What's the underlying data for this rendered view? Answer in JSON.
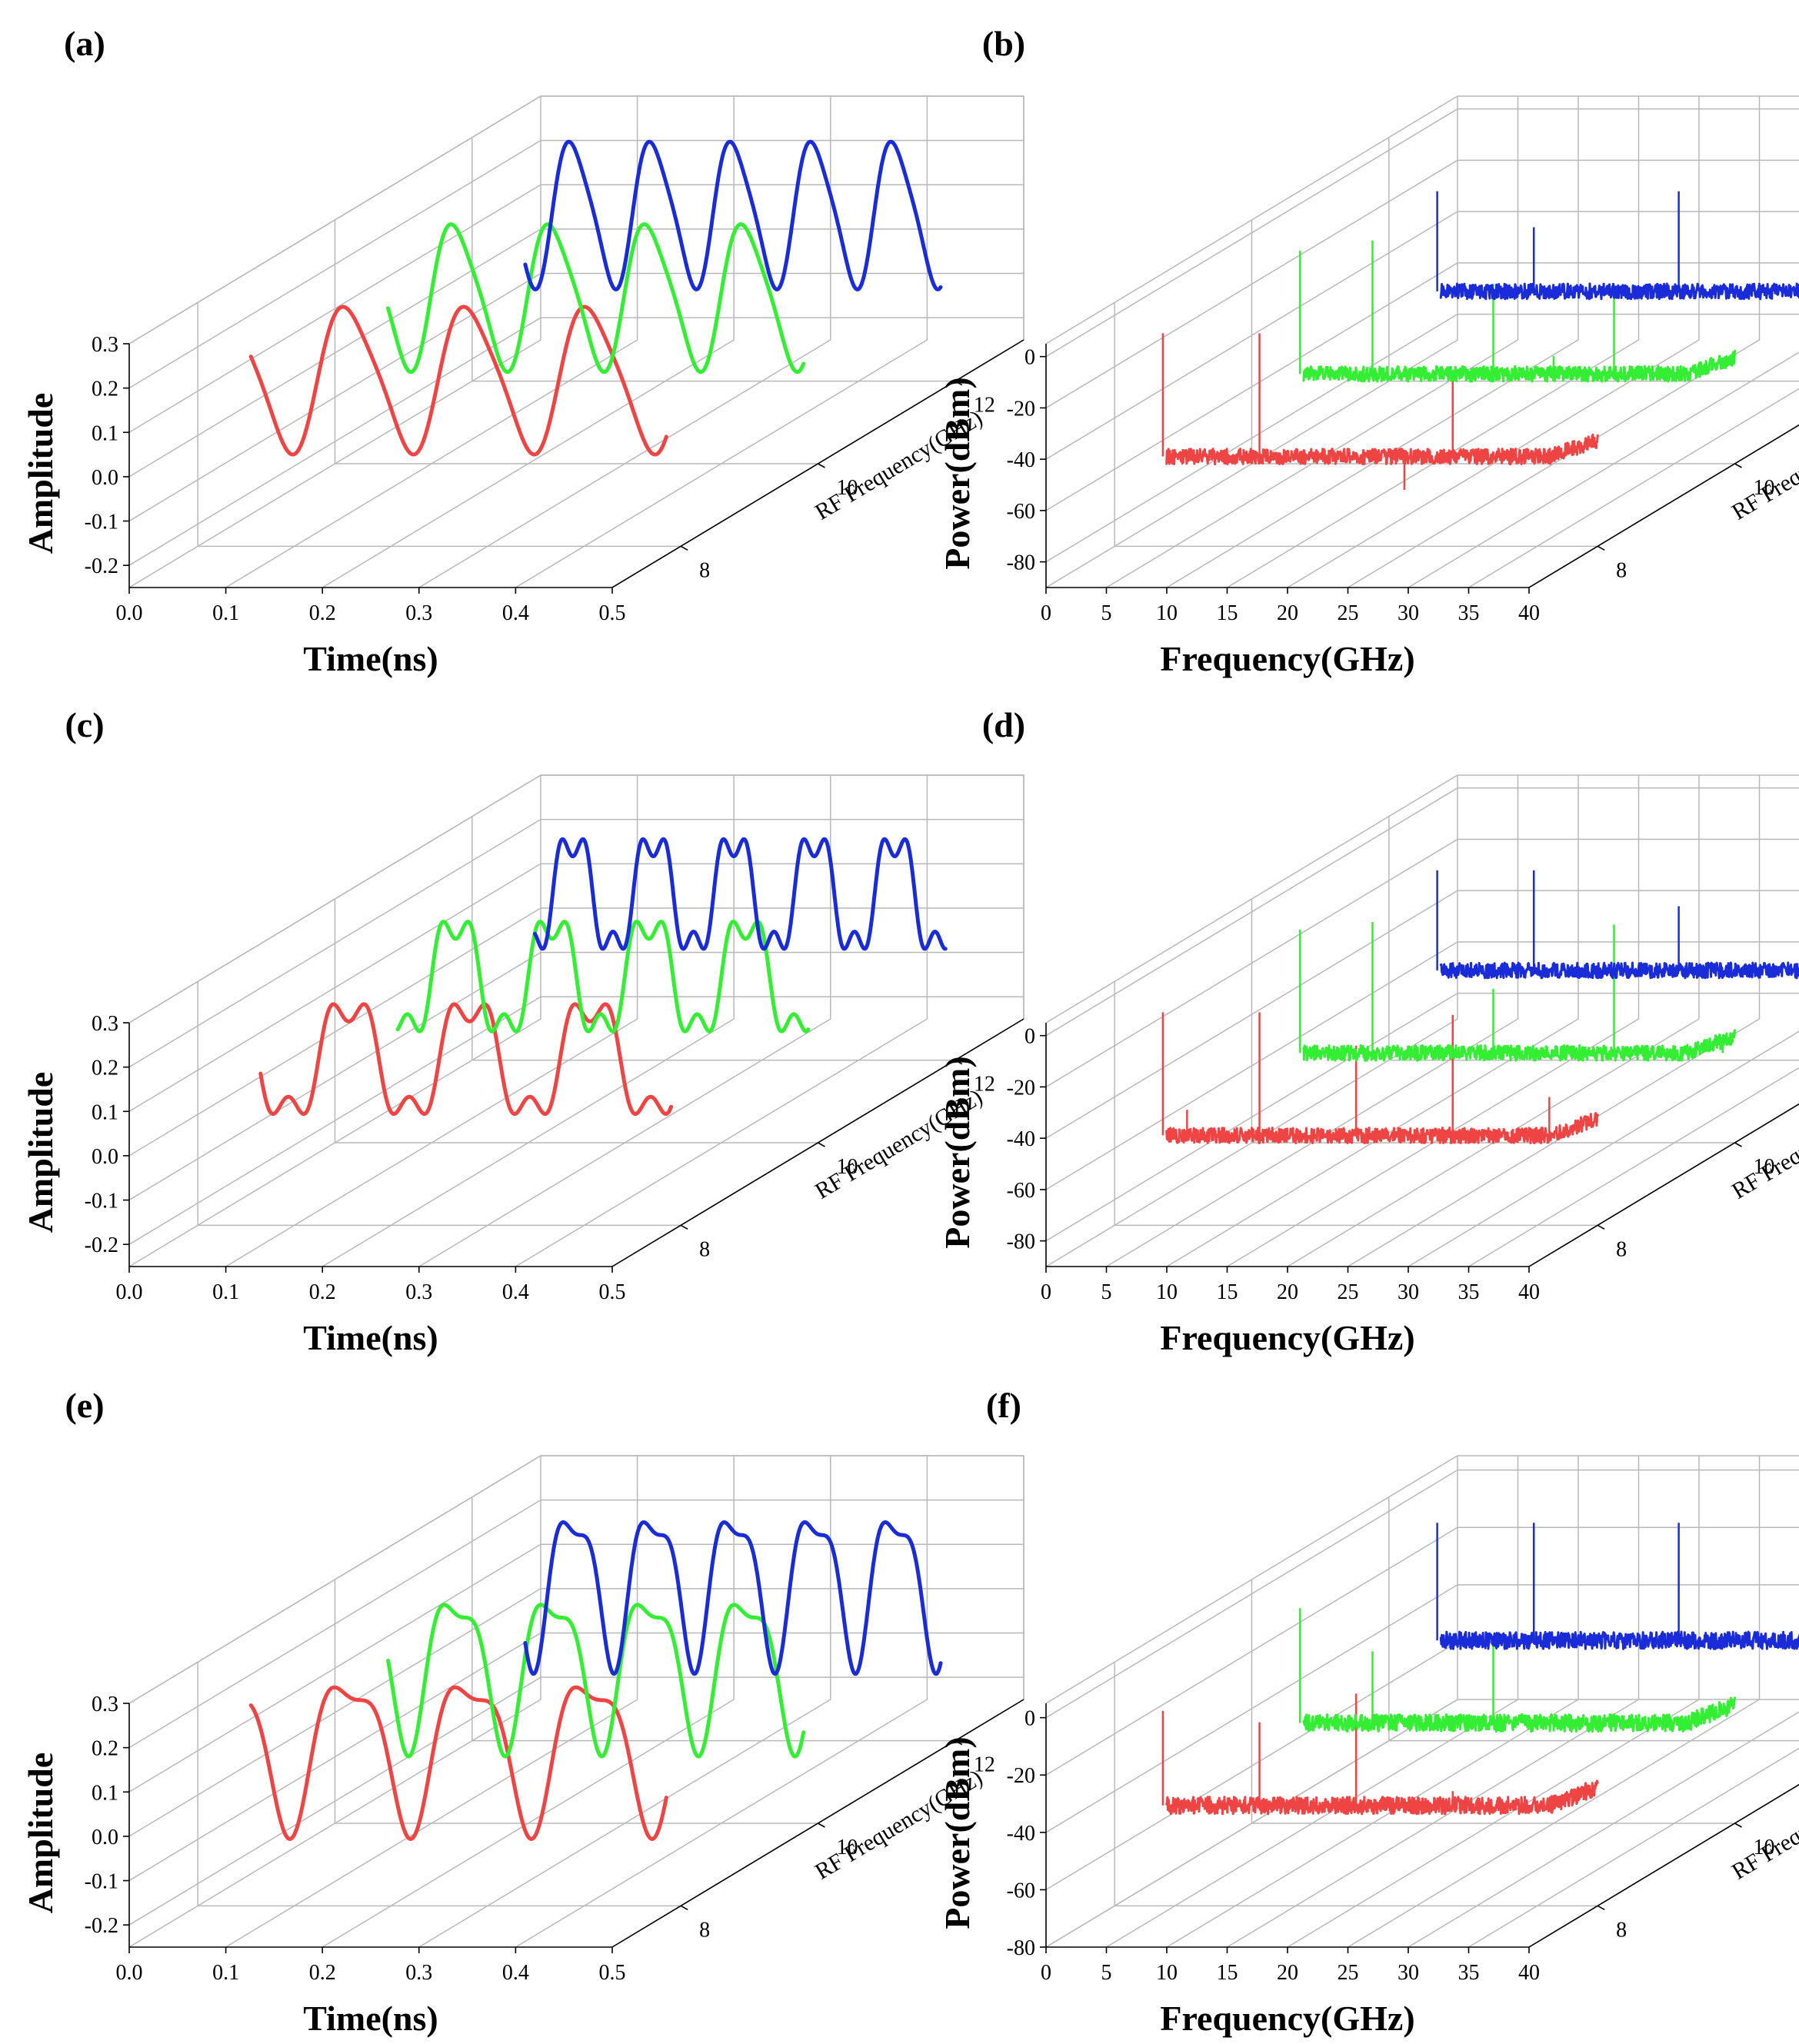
{
  "colors": {
    "red": "#ee4444",
    "green": "#33ee33",
    "blue": "#1a2bd8"
  },
  "chart_data": [
    {
      "panel": "(a)",
      "type": "line",
      "xlabel": "Time(ns)",
      "ylabel": "Amplitude",
      "zlabel": "RF Frequency(GHz)",
      "xlim": [
        0.0,
        0.5
      ],
      "ylim": [
        -0.25,
        0.3
      ],
      "zlim": [
        7,
        13
      ],
      "x_ticks": [
        "0.0",
        "0.1",
        "0.2",
        "0.3",
        "0.4",
        "0.5"
      ],
      "y_ticks": [
        "-0.2",
        "-0.1",
        "0.0",
        "0.1",
        "0.2",
        "0.3"
      ],
      "z_ticks": [
        "8",
        "10",
        "12"
      ],
      "waveform": {
        "offset": 0.13,
        "fundamental_amp": 0.16,
        "harmonic2_amp": 0.025,
        "harmonic2_phase": 0.3,
        "harmonic3_amp": 0.0,
        "harmonic3_phase": 0.0,
        "x_range": [
          0.055,
          0.485
        ]
      },
      "series": [
        {
          "name": "8 GHz",
          "z": 8,
          "color": "red"
        },
        {
          "name": "10 GHz",
          "z": 10,
          "color": "green"
        },
        {
          "name": "12 GHz",
          "z": 12,
          "color": "blue"
        }
      ]
    },
    {
      "panel": "(b)",
      "type": "line",
      "xlabel": "Frequency(GHz)",
      "ylabel": "Power(dBm)",
      "zlabel": "RF Frequency(GHz)",
      "xlim": [
        0,
        40
      ],
      "ylim": [
        -90,
        5
      ],
      "zlim": [
        7,
        13
      ],
      "x_ticks": [
        "0",
        "5",
        "10",
        "15",
        "20",
        "25",
        "30",
        "35",
        "40"
      ],
      "y_ticks": [
        "-80",
        "-60",
        "-40",
        "-20",
        "0"
      ],
      "z_ticks": [
        "8",
        "10",
        "12"
      ],
      "series": [
        {
          "name": "8 GHz",
          "z": 8,
          "color": "red",
          "noise_floor": -55,
          "spikes": [
            [
              4,
              -7
            ],
            [
              12,
              -7
            ],
            [
              20,
              -55
            ],
            [
              24,
              -68
            ],
            [
              28,
              -23
            ]
          ]
        },
        {
          "name": "10 GHz",
          "z": 10,
          "color": "green",
          "noise_floor": -55,
          "spikes": [
            [
              4,
              -7
            ],
            [
              10,
              -3
            ],
            [
              20,
              -20
            ],
            [
              25,
              -48
            ],
            [
              30,
              -20
            ]
          ]
        },
        {
          "name": "12 GHz",
          "z": 12,
          "color": "blue",
          "noise_floor": -55,
          "spikes": [
            [
              4,
              -16
            ],
            [
              12,
              -30
            ],
            [
              24,
              -16
            ],
            [
              36,
              -16
            ]
          ]
        }
      ]
    },
    {
      "panel": "(c)",
      "type": "line",
      "xlabel": "Time(ns)",
      "ylabel": "Amplitude",
      "zlabel": "RF Frequency(GHz)",
      "xlim": [
        0.0,
        0.5
      ],
      "ylim": [
        -0.25,
        0.3
      ],
      "zlim": [
        7,
        13
      ],
      "x_ticks": [
        "0.0",
        "0.1",
        "0.2",
        "0.3",
        "0.4",
        "0.5"
      ],
      "y_ticks": [
        "-0.2",
        "-0.1",
        "0.0",
        "0.1",
        "0.2",
        "0.3"
      ],
      "z_ticks": [
        "8",
        "10",
        "12"
      ],
      "waveform": {
        "offset": 0.125,
        "fundamental_amp": 0.13,
        "harmonic2_amp": 0.0,
        "harmonic2_phase": 0.0,
        "harmonic3_amp": 0.045,
        "harmonic3_phase": 0.0,
        "x_range": [
          0.065,
          0.49
        ]
      },
      "series": [
        {
          "name": "8 GHz",
          "z": 8,
          "color": "red"
        },
        {
          "name": "10 GHz",
          "z": 10,
          "color": "green"
        },
        {
          "name": "12 GHz",
          "z": 12,
          "color": "blue"
        }
      ]
    },
    {
      "panel": "(d)",
      "type": "line",
      "xlabel": "Frequency(GHz)",
      "ylabel": "Power(dBm)",
      "zlabel": "RF Frequency(GHz)",
      "xlim": [
        0,
        40
      ],
      "ylim": [
        -90,
        5
      ],
      "zlim": [
        7,
        13
      ],
      "x_ticks": [
        "0",
        "5",
        "10",
        "15",
        "20",
        "25",
        "30",
        "35",
        "40"
      ],
      "y_ticks": [
        "-80",
        "-60",
        "-40",
        "-20",
        "0"
      ],
      "z_ticks": [
        "8",
        "10",
        "12"
      ],
      "series": [
        {
          "name": "8 GHz",
          "z": 8,
          "color": "red",
          "noise_floor": -55,
          "spikes": [
            [
              4,
              -7
            ],
            [
              6,
              -45
            ],
            [
              12,
              -7
            ],
            [
              20,
              -20
            ],
            [
              28,
              -8
            ],
            [
              36,
              -40
            ]
          ]
        },
        {
          "name": "10 GHz",
          "z": 10,
          "color": "green",
          "noise_floor": -55,
          "spikes": [
            [
              4,
              -7
            ],
            [
              10,
              -4
            ],
            [
              20,
              -30
            ],
            [
              30,
              -5
            ],
            [
              39,
              -50
            ]
          ]
        },
        {
          "name": "12 GHz",
          "z": 12,
          "color": "blue",
          "noise_floor": -55,
          "spikes": [
            [
              4,
              -16
            ],
            [
              12,
              -16
            ],
            [
              24,
              -30
            ],
            [
              36,
              -16
            ]
          ]
        }
      ]
    },
    {
      "panel": "(e)",
      "type": "line",
      "xlabel": "Time(ns)",
      "ylabel": "Amplitude",
      "zlabel": "RF Frequency(GHz)",
      "xlim": [
        0.0,
        0.5
      ],
      "ylim": [
        -0.25,
        0.3
      ],
      "zlim": [
        7,
        13
      ],
      "x_ticks": [
        "0.0",
        "0.1",
        "0.2",
        "0.3",
        "0.4",
        "0.5"
      ],
      "y_ticks": [
        "-0.2",
        "-0.1",
        "0.0",
        "0.1",
        "0.2",
        "0.3"
      ],
      "z_ticks": [
        "8",
        "10",
        "12"
      ],
      "waveform": {
        "offset": 0.115,
        "fundamental_amp": 0.16,
        "harmonic2_amp": 0.055,
        "harmonic2_phase": 1.3,
        "harmonic3_amp": 0.0,
        "harmonic3_phase": 0.0,
        "x_range": [
          0.055,
          0.485
        ]
      },
      "series": [
        {
          "name": "8 GHz",
          "z": 8,
          "color": "red"
        },
        {
          "name": "10 GHz",
          "z": 10,
          "color": "green"
        },
        {
          "name": "12 GHz",
          "z": 12,
          "color": "blue"
        }
      ]
    },
    {
      "panel": "(f)",
      "type": "line",
      "xlabel": "Frequency(GHz)",
      "ylabel": "Power(dBm)",
      "zlabel": "RF Frequency(GHz)",
      "xlim": [
        0,
        40
      ],
      "ylim": [
        -80,
        5
      ],
      "zlim": [
        7,
        13
      ],
      "x_ticks": [
        "0",
        "5",
        "10",
        "15",
        "20",
        "25",
        "30",
        "35",
        "40"
      ],
      "y_ticks": [
        "-80",
        "-60",
        "-40",
        "-20",
        "0"
      ],
      "z_ticks": [
        "8",
        "10",
        "12"
      ],
      "series": [
        {
          "name": "8 GHz",
          "z": 8,
          "color": "red",
          "noise_floor": -45,
          "spikes": [
            [
              4,
              -12
            ],
            [
              12,
              -16
            ],
            [
              20,
              -6
            ],
            [
              28,
              -40
            ]
          ]
        },
        {
          "name": "10 GHz",
          "z": 10,
          "color": "green",
          "noise_floor": -45,
          "spikes": [
            [
              4,
              -5
            ],
            [
              10,
              -20
            ],
            [
              20,
              -18
            ]
          ]
        },
        {
          "name": "12 GHz",
          "z": 12,
          "color": "blue",
          "noise_floor": -45,
          "spikes": [
            [
              4,
              -4
            ],
            [
              12,
              -4
            ],
            [
              24,
              -4
            ],
            [
              36,
              -30
            ]
          ]
        }
      ]
    }
  ]
}
